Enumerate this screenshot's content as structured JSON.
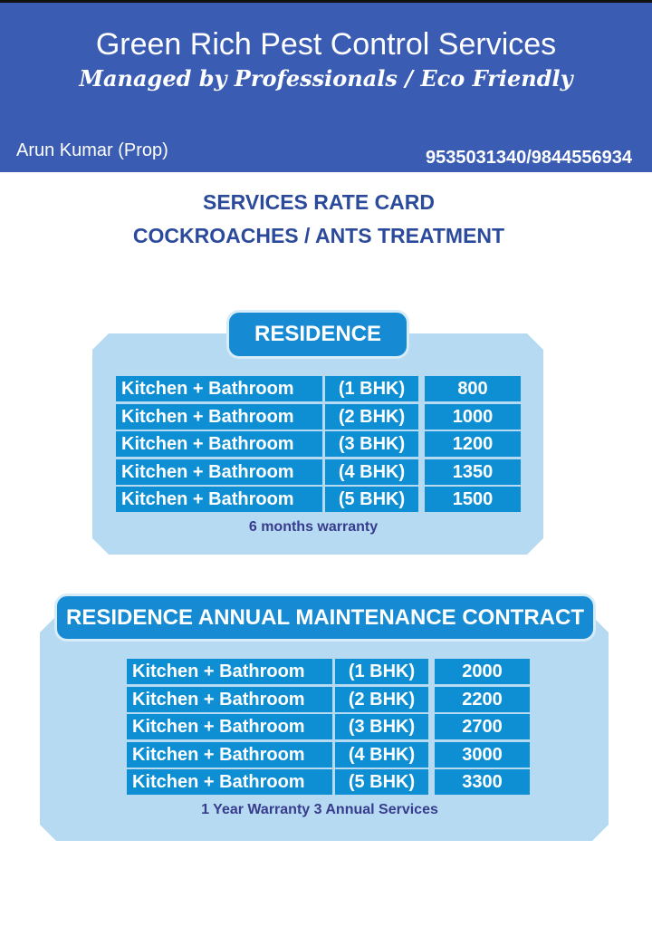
{
  "header": {
    "title": "Green Rich Pest Control Services",
    "subtitle": "Managed by Professionals / Eco Friendly",
    "proprietor": "Arun Kumar (Prop)",
    "phone": "9535031340/9844556934"
  },
  "headings": [
    "SERVICES RATE CARD",
    "COCKROACHES / ANTS TREATMENT"
  ],
  "sections": [
    {
      "title": "RESIDENCE",
      "rows": [
        [
          "Kitchen +  Bathroom",
          "(1 BHK)",
          "800"
        ],
        [
          "Kitchen +  Bathroom",
          "(2 BHK)",
          "1000"
        ],
        [
          "Kitchen +  Bathroom",
          "(3 BHK)",
          "1200"
        ],
        [
          "Kitchen +  Bathroom",
          "(4 BHK)",
          "1350"
        ],
        [
          "Kitchen +  Bathroom",
          "(5 BHK)",
          "1500"
        ]
      ],
      "note": "6 months warranty"
    },
    {
      "title": "RESIDENCE ANNUAL MAINTENANCE CONTRACT",
      "rows": [
        [
          "Kitchen +  Bathroom",
          "(1 BHK)",
          "2000"
        ],
        [
          "Kitchen +  Bathroom",
          "(2 BHK)",
          "2200"
        ],
        [
          "Kitchen +  Bathroom",
          "(3 BHK)",
          "2700"
        ],
        [
          "Kitchen +  Bathroom",
          "(4 BHK)",
          "3000"
        ],
        [
          "Kitchen +  Bathroom",
          "(5 BHK)",
          "3300"
        ]
      ],
      "note": "1 Year  Warranty  3 Annual Services"
    }
  ]
}
